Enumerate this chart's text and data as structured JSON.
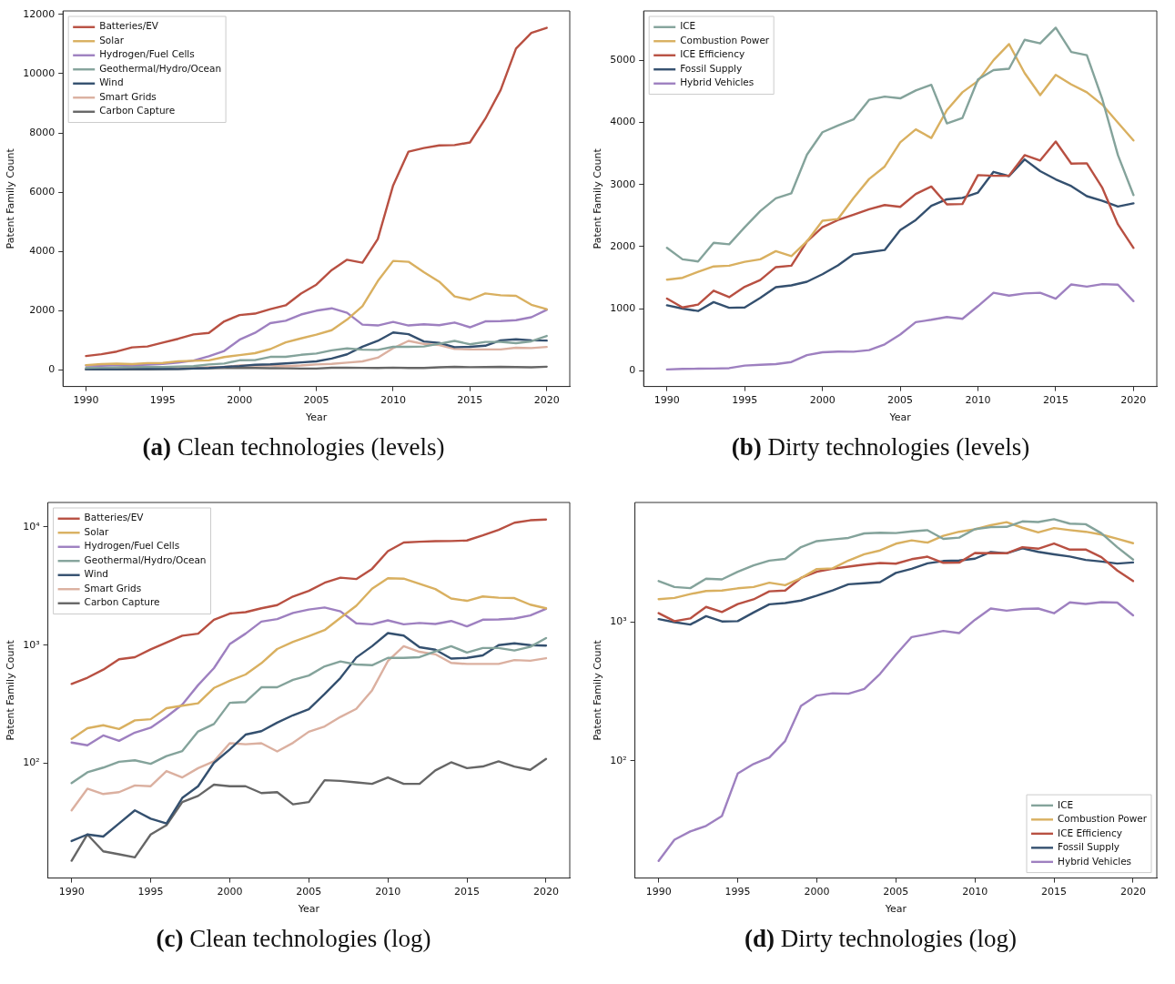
{
  "chart_data": [
    {
      "type": "line",
      "title": "(a) Clean technologies (levels)",
      "xlabel": "Year",
      "ylabel": "Patent Family Count",
      "legend": "top left",
      "grid": false,
      "x": [
        1990,
        1991,
        1992,
        1993,
        1994,
        1995,
        1996,
        1997,
        1998,
        1999,
        2000,
        2001,
        2002,
        2003,
        2004,
        2005,
        2006,
        2007,
        2008,
        2009,
        2010,
        2011,
        2012,
        2013,
        2014,
        2015,
        2016,
        2017,
        2018,
        2019,
        2020
      ],
      "xlim": [
        1988.5,
        2021.5
      ],
      "xticks": [
        1990,
        1995,
        2000,
        2005,
        2010,
        2015,
        2020
      ],
      "ylim": [
        -560,
        12120
      ],
      "yticks": [
        0,
        2000,
        4000,
        6000,
        8000,
        10000,
        12000
      ],
      "series": [
        {
          "name": "Batteries/EV",
          "color": "#b85042",
          "values": [
            470,
            530,
            620,
            760,
            790,
            920,
            1050,
            1200,
            1250,
            1640,
            1850,
            1900,
            2050,
            2180,
            2580,
            2880,
            3370,
            3720,
            3620,
            4420,
            6230,
            7370,
            7490,
            7580,
            7590,
            7680,
            8480,
            9450,
            10850,
            11380,
            11550
          ]
        },
        {
          "name": "Solar",
          "color": "#d9b060",
          "values": [
            161,
            198,
            210,
            195,
            231,
            236,
            293,
            307,
            322,
            434,
            500,
            564,
            703,
            927,
            1065,
            1190,
            1340,
            1700,
            2150,
            3000,
            3680,
            3650,
            3300,
            2980,
            2480,
            2370,
            2580,
            2520,
            2500,
            2200,
            2050
          ]
        },
        {
          "name": "Hydrogen/Fuel Cells",
          "color": "#9e80c0",
          "values": [
            150,
            142,
            172,
            155,
            182,
            200,
            247,
            314,
            459,
            639,
            1020,
            1250,
            1580,
            1660,
            1870,
            2000,
            2080,
            1930,
            1530,
            1500,
            1620,
            1500,
            1540,
            1510,
            1600,
            1440,
            1640,
            1650,
            1680,
            1780,
            2030
          ]
        },
        {
          "name": "Geothermal/Hydro/Ocean",
          "color": "#84a39b",
          "values": [
            68,
            84,
            92,
            103,
            106,
            99,
            115,
            127,
            186,
            215,
            325,
            330,
            440,
            440,
            509,
            553,
            661,
            728,
            685,
            676,
            780,
            780,
            791,
            883,
            980,
            865,
            946,
            946,
            901,
            966,
            1148
          ]
        },
        {
          "name": "Wind",
          "color": "#34506f",
          "values": [
            22,
            25,
            24,
            31,
            40,
            34,
            31,
            51,
            64,
            101,
            131,
            175,
            187,
            221,
            255,
            287,
            386,
            527,
            785,
            980,
            1265,
            1205,
            960,
            914,
            769,
            780,
            818,
            1000,
            1035,
            1000,
            990
          ]
        },
        {
          "name": "Smart Grids",
          "color": "#dbb0a0",
          "values": [
            40,
            61,
            55,
            57,
            65,
            64,
            86,
            76,
            91,
            104,
            148,
            145,
            148,
            126,
            149,
            185,
            205,
            247,
            289,
            414,
            733,
            980,
            878,
            836,
            708,
            693,
            693,
            693,
            748,
            738,
            775
          ]
        },
        {
          "name": "Carbon Capture",
          "color": "#666666",
          "values": [
            15,
            25,
            18,
            17,
            16,
            25,
            30,
            47,
            53,
            66,
            64,
            64,
            56,
            57,
            45,
            47,
            72,
            71,
            69,
            67,
            76,
            67,
            67,
            87,
            102,
            91,
            94,
            104,
            94,
            88,
            109
          ]
        }
      ]
    },
    {
      "type": "line",
      "title": "(b) Dirty technologies (levels)",
      "xlabel": "Year",
      "ylabel": "Patent Family Count",
      "legend": "top left",
      "grid": false,
      "x": [
        1990,
        1991,
        1992,
        1993,
        1994,
        1995,
        1996,
        1997,
        1998,
        1999,
        2000,
        2001,
        2002,
        2003,
        2004,
        2005,
        2006,
        2007,
        2008,
        2009,
        2010,
        2011,
        2012,
        2013,
        2014,
        2015,
        2016,
        2017,
        2018,
        2019,
        2020
      ],
      "xlim": [
        1988.5,
        2021.5
      ],
      "xticks": [
        1990,
        1995,
        2000,
        2005,
        2010,
        2015,
        2020
      ],
      "ylim": [
        -256,
        5800
      ],
      "yticks": [
        0,
        1000,
        2000,
        3000,
        4000,
        5000
      ],
      "series": [
        {
          "name": "ICE",
          "color": "#84a39b",
          "values": [
            1980,
            1795,
            1760,
            2060,
            2037,
            2313,
            2572,
            2779,
            2860,
            3481,
            3844,
            3953,
            4051,
            4367,
            4419,
            4390,
            4517,
            4609,
            3987,
            4074,
            4695,
            4845,
            4868,
            5334,
            5276,
            5529,
            5138,
            5086,
            4373,
            3475,
            2831
          ]
        },
        {
          "name": "Combustion Power",
          "color": "#d9b060",
          "values": [
            1467,
            1496,
            1594,
            1680,
            1692,
            1755,
            1795,
            1927,
            1847,
            2083,
            2417,
            2445,
            2785,
            3090,
            3291,
            3682,
            3890,
            3751,
            4200,
            4488,
            4672,
            5006,
            5265,
            4799,
            4442,
            4770,
            4615,
            4488,
            4287,
            3999,
            3711
          ]
        },
        {
          "name": "ICE Efficiency",
          "color": "#b85042",
          "values": [
            1162,
            1018,
            1064,
            1289,
            1185,
            1352,
            1461,
            1669,
            1692,
            2083,
            2313,
            2428,
            2514,
            2601,
            2670,
            2641,
            2848,
            2969,
            2681,
            2687,
            3153,
            3142,
            3142,
            3475,
            3389,
            3694,
            3337,
            3343,
            2946,
            2359,
            1979
          ]
        },
        {
          "name": "Fossil Supply",
          "color": "#34506f",
          "values": [
            1053,
            1001,
            961,
            1105,
            1013,
            1018,
            1174,
            1346,
            1375,
            1433,
            1554,
            1697,
            1876,
            1910,
            1945,
            2267,
            2428,
            2658,
            2762,
            2785,
            2871,
            3205,
            3136,
            3406,
            3216,
            3084,
            2975,
            2813,
            2739,
            2647,
            2698
          ]
        },
        {
          "name": "Hybrid Vehicles",
          "color": "#9e80c0",
          "values": [
            19,
            27,
            31,
            34,
            40,
            81,
            95,
            106,
            139,
            249,
            296,
            307,
            305,
            330,
            424,
            583,
            782,
            820,
            865,
            835,
            1040,
            1255,
            1210,
            1245,
            1255,
            1160,
            1390,
            1355,
            1395,
            1385,
            1120
          ]
        }
      ]
    },
    {
      "type": "line",
      "title": "(c) Clean technologies (log)",
      "xlabel": "Year",
      "ylabel": "Patent Family Count",
      "legend": "top left",
      "grid": false,
      "log": "y",
      "x": [
        1990,
        1991,
        1992,
        1993,
        1994,
        1995,
        1996,
        1997,
        1998,
        1999,
        2000,
        2001,
        2002,
        2003,
        2004,
        2005,
        2006,
        2007,
        2008,
        2009,
        2010,
        2011,
        2012,
        2013,
        2014,
        2015,
        2016,
        2017,
        2018,
        2019,
        2020
      ],
      "xlim": [
        1988.5,
        2021.5
      ],
      "xticks": [
        1990,
        1995,
        2000,
        2005,
        2010,
        2015,
        2020
      ],
      "ylim": [
        10.7,
        16100
      ],
      "yticks": [
        {
          "value": 100,
          "label": "10²"
        },
        {
          "value": 1000,
          "label": "10³"
        },
        {
          "value": 10000,
          "label": "10⁴"
        }
      ],
      "series": [
        {
          "name": "Batteries/EV",
          "color": "#b85042",
          "values": [
            470,
            530,
            620,
            760,
            790,
            920,
            1050,
            1200,
            1250,
            1640,
            1850,
            1900,
            2050,
            2180,
            2580,
            2880,
            3370,
            3720,
            3620,
            4420,
            6230,
            7370,
            7490,
            7580,
            7590,
            7680,
            8480,
            9450,
            10850,
            11380,
            11550
          ]
        },
        {
          "name": "Solar",
          "color": "#d9b060",
          "values": [
            161,
            198,
            210,
            195,
            231,
            236,
            293,
            307,
            322,
            434,
            500,
            564,
            703,
            927,
            1065,
            1190,
            1340,
            1700,
            2150,
            3000,
            3680,
            3650,
            3300,
            2980,
            2480,
            2370,
            2580,
            2520,
            2500,
            2200,
            2050
          ]
        },
        {
          "name": "Hydrogen/Fuel Cells",
          "color": "#9e80c0",
          "values": [
            150,
            142,
            172,
            155,
            182,
            200,
            247,
            314,
            459,
            639,
            1020,
            1250,
            1580,
            1660,
            1870,
            2000,
            2080,
            1930,
            1530,
            1500,
            1620,
            1500,
            1540,
            1510,
            1600,
            1440,
            1640,
            1650,
            1680,
            1780,
            2030
          ]
        },
        {
          "name": "Geothermal/Hydro/Ocean",
          "color": "#84a39b",
          "values": [
            68,
            84,
            92,
            103,
            106,
            99,
            115,
            127,
            186,
            215,
            325,
            330,
            440,
            440,
            509,
            553,
            661,
            728,
            685,
            676,
            780,
            780,
            791,
            883,
            980,
            865,
            946,
            946,
            901,
            966,
            1148
          ]
        },
        {
          "name": "Wind",
          "color": "#34506f",
          "values": [
            22,
            25,
            24,
            31,
            40,
            34,
            31,
            51,
            64,
            101,
            131,
            175,
            187,
            221,
            255,
            287,
            386,
            527,
            785,
            980,
            1265,
            1205,
            960,
            914,
            769,
            780,
            818,
            1000,
            1035,
            1000,
            990
          ]
        },
        {
          "name": "Smart Grids",
          "color": "#dbb0a0",
          "values": [
            40,
            61,
            55,
            57,
            65,
            64,
            86,
            76,
            91,
            104,
            148,
            145,
            148,
            126,
            149,
            185,
            205,
            247,
            289,
            414,
            733,
            980,
            878,
            836,
            708,
            693,
            693,
            693,
            748,
            738,
            775
          ]
        },
        {
          "name": "Carbon Capture",
          "color": "#666666",
          "values": [
            15,
            25,
            18,
            17,
            16,
            25,
            30,
            47,
            53,
            66,
            64,
            64,
            56,
            57,
            45,
            47,
            72,
            71,
            69,
            67,
            76,
            67,
            67,
            87,
            102,
            91,
            94,
            104,
            94,
            88,
            109
          ]
        }
      ]
    },
    {
      "type": "line",
      "title": "(d) Dirty technologies (log)",
      "xlabel": "Year",
      "ylabel": "Patent Family Count",
      "legend": "bottom right",
      "grid": false,
      "log": "y",
      "x": [
        1990,
        1991,
        1992,
        1993,
        1994,
        1995,
        1996,
        1997,
        1998,
        1999,
        2000,
        2001,
        2002,
        2003,
        2004,
        2005,
        2006,
        2007,
        2008,
        2009,
        2010,
        2011,
        2012,
        2013,
        2014,
        2015,
        2016,
        2017,
        2018,
        2019,
        2020
      ],
      "xlim": [
        1988.5,
        2021.5
      ],
      "xticks": [
        1990,
        1995,
        2000,
        2005,
        2010,
        2015,
        2020
      ],
      "ylim": [
        14.3,
        7300
      ],
      "yticks": [
        {
          "value": 100,
          "label": "10²"
        },
        {
          "value": 1000,
          "label": "10³"
        }
      ],
      "series": [
        {
          "name": "ICE",
          "color": "#84a39b",
          "values": [
            1980,
            1795,
            1760,
            2060,
            2037,
            2313,
            2572,
            2779,
            2860,
            3481,
            3844,
            3953,
            4051,
            4367,
            4419,
            4390,
            4517,
            4609,
            3987,
            4074,
            4695,
            4845,
            4868,
            5334,
            5276,
            5529,
            5138,
            5086,
            4373,
            3475,
            2831
          ]
        },
        {
          "name": "Combustion Power",
          "color": "#d9b060",
          "values": [
            1467,
            1496,
            1594,
            1680,
            1692,
            1755,
            1795,
            1927,
            1847,
            2083,
            2417,
            2445,
            2785,
            3090,
            3291,
            3682,
            3890,
            3751,
            4200,
            4488,
            4672,
            5006,
            5265,
            4799,
            4442,
            4770,
            4615,
            4488,
            4287,
            3999,
            3711
          ]
        },
        {
          "name": "ICE Efficiency",
          "color": "#b85042",
          "values": [
            1162,
            1018,
            1064,
            1289,
            1185,
            1352,
            1461,
            1669,
            1692,
            2083,
            2313,
            2428,
            2514,
            2601,
            2670,
            2641,
            2848,
            2969,
            2681,
            2687,
            3153,
            3142,
            3142,
            3475,
            3389,
            3694,
            3337,
            3343,
            2946,
            2359,
            1979
          ]
        },
        {
          "name": "Fossil Supply",
          "color": "#34506f",
          "values": [
            1053,
            1001,
            961,
            1105,
            1013,
            1018,
            1174,
            1346,
            1375,
            1433,
            1554,
            1697,
            1876,
            1910,
            1945,
            2267,
            2428,
            2658,
            2762,
            2785,
            2871,
            3205,
            3136,
            3406,
            3216,
            3084,
            2975,
            2813,
            2739,
            2647,
            2698
          ]
        },
        {
          "name": "Hybrid Vehicles",
          "color": "#9e80c0",
          "values": [
            19,
            27,
            31,
            34,
            40,
            81,
            95,
            106,
            139,
            249,
            296,
            307,
            305,
            330,
            424,
            583,
            782,
            820,
            865,
            835,
            1040,
            1255,
            1210,
            1245,
            1255,
            1160,
            1390,
            1355,
            1395,
            1385,
            1120
          ]
        }
      ]
    }
  ]
}
